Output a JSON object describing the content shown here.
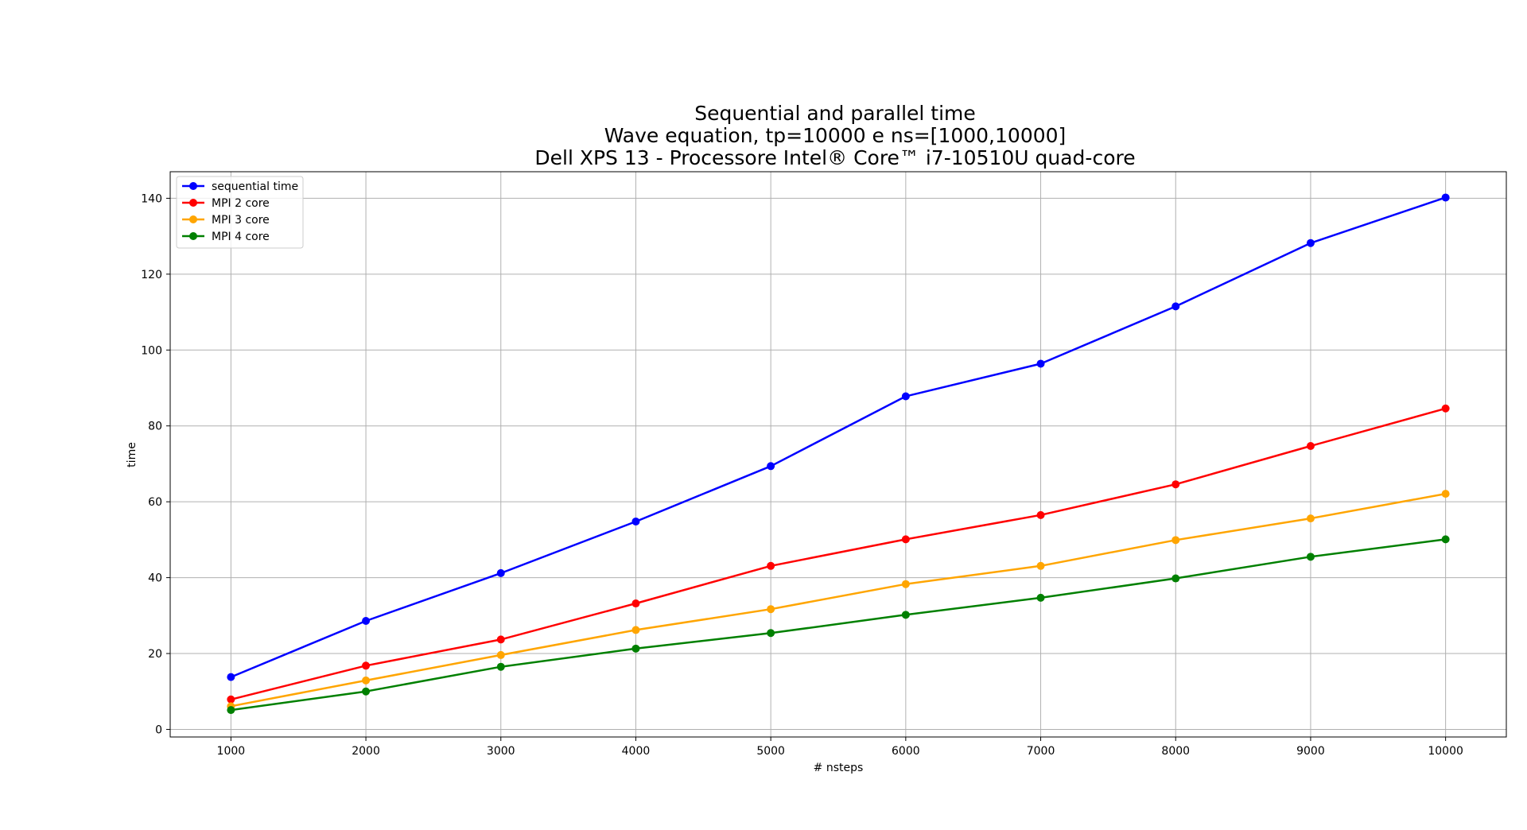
{
  "chart_data": {
    "type": "line",
    "title": [
      "Sequential and parallel time",
      "Wave equation, tp=10000 e ns=[1000,10000]",
      "Dell XPS 13 - Processore Intel® Core™ i7-10510U quad-core"
    ],
    "xlabel": "# nsteps",
    "ylabel": "time",
    "x": [
      1000,
      2000,
      3000,
      4000,
      5000,
      6000,
      7000,
      8000,
      9000,
      10000
    ],
    "xlim": [
      550,
      10450
    ],
    "ylim": [
      -2,
      147
    ],
    "xticks": [
      1000,
      2000,
      3000,
      4000,
      5000,
      6000,
      7000,
      8000,
      9000,
      10000
    ],
    "yticks": [
      0,
      20,
      40,
      60,
      80,
      100,
      120,
      140
    ],
    "grid": true,
    "legend": "top-left",
    "series": [
      {
        "name": "sequential time",
        "color": "#0000ff",
        "values": [
          13.8,
          28.6,
          41.2,
          54.8,
          69.4,
          87.8,
          96.4,
          111.5,
          128.2,
          140.2
        ]
      },
      {
        "name": "MPI 2 core",
        "color": "#ff0000",
        "values": [
          7.9,
          16.8,
          23.7,
          33.2,
          43.1,
          50.1,
          56.5,
          64.6,
          74.7,
          84.6
        ]
      },
      {
        "name": "MPI 3 core",
        "color": "#ffa500",
        "values": [
          6.1,
          12.9,
          19.6,
          26.2,
          31.7,
          38.3,
          43.1,
          49.9,
          55.6,
          62.1
        ]
      },
      {
        "name": "MPI 4 core",
        "color": "#008000",
        "values": [
          5.1,
          10.0,
          16.5,
          21.3,
          25.4,
          30.2,
          34.7,
          39.8,
          45.5,
          50.1
        ]
      }
    ]
  }
}
